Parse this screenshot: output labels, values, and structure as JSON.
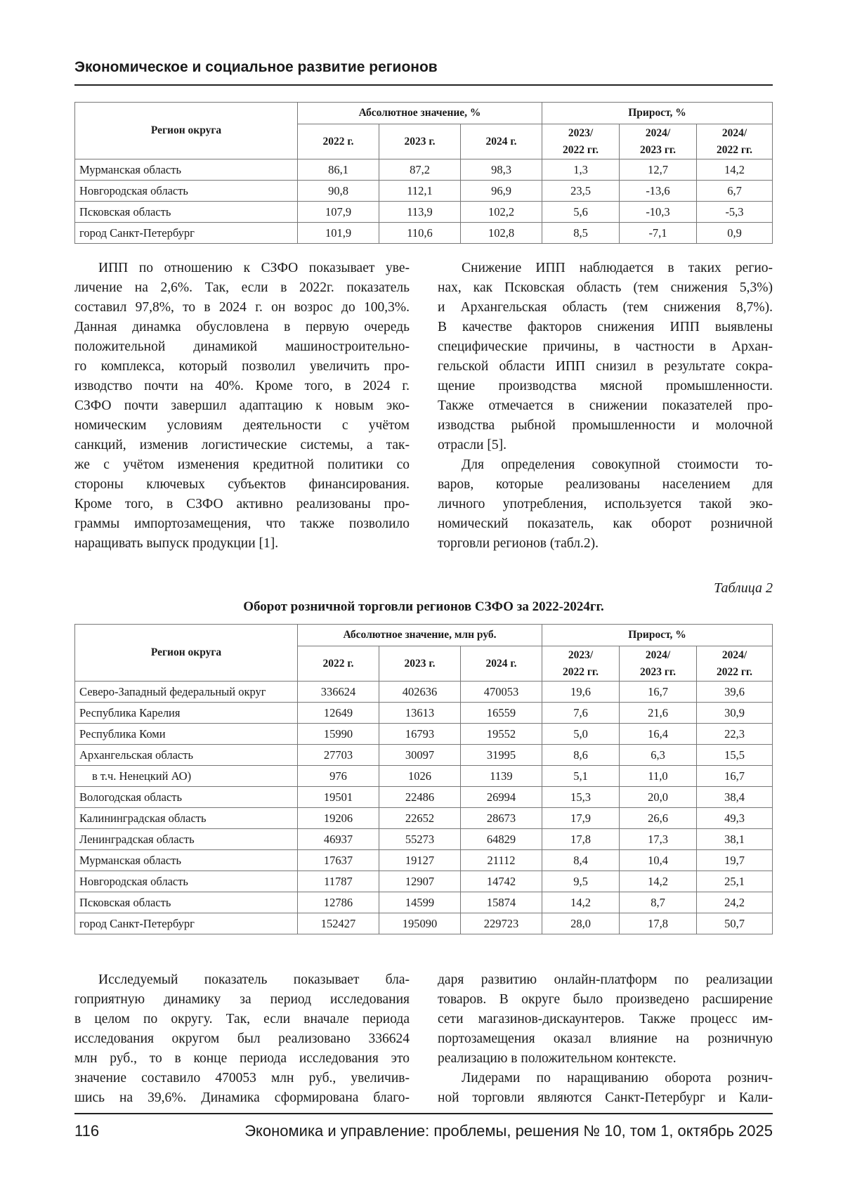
{
  "header": {
    "title": "Экономическое и социальное развитие регионов"
  },
  "table1": {
    "region_header": "Регион округа",
    "group_abs": "Абсолютное значение, %",
    "group_growth": "Прирост, %",
    "columns": [
      "2022 г.",
      "2023 г.",
      "2024 г.",
      "2023/ 2022 гг.",
      "2024/ 2023 гг.",
      "2024/ 2022 гг."
    ],
    "rows": [
      {
        "region": "Мурманская область",
        "values": [
          "86,1",
          "87,2",
          "98,3",
          "1,3",
          "12,7",
          "14,2"
        ]
      },
      {
        "region": "Новгородская область",
        "values": [
          "90,8",
          "112,1",
          "96,9",
          "23,5",
          "-13,6",
          "6,7"
        ]
      },
      {
        "region": "Псковская область",
        "values": [
          "107,9",
          "113,9",
          "102,2",
          "5,6",
          "-10,3",
          "-5,3"
        ]
      },
      {
        "region": "город Санкт-Петербург",
        "values": [
          "101,9",
          "110,6",
          "102,8",
          "8,5",
          "-7,1",
          "0,9"
        ]
      }
    ]
  },
  "text_top": {
    "left": [
      {
        "lines": [
          "ИПП по отношению к СЗФО показывает уве-",
          "личение на 2,6%. Так, если в 2022г. показатель",
          "составил 97,8%, то в 2024 г. он возрос до 100,3%.",
          "Данная динамка обусловлена в первую очередь",
          "положительной динамикой машиностроительно-",
          "го комплекса, который позволил увеличить про-",
          "изводство почти на 40%. Кроме того, в 2024 г.",
          "СЗФО почти завершил адаптацию к новым эко-",
          "номическим условиям деятельности с учётом",
          "санкций, изменив логистические системы, а так-",
          "же с учётом изменения кредитной политики со",
          "стороны ключевых субъектов финансирования.",
          "Кроме того, в СЗФО активно реализованы про-",
          "граммы импортозамещения, что также позволило",
          "наращивать выпуск продукции [1]."
        ]
      }
    ],
    "right": [
      {
        "lines": [
          "Снижение ИПП наблюдается в таких регио-",
          "нах, как Псковская область (тем снижения 5,3%)",
          "и Архангельская область (тем снижения 8,7%).",
          "В качестве факторов снижения ИПП выявлены",
          "специфические причины, в частности в Архан-",
          "гельской области ИПП снизил в результате сокра-",
          "щение производства мясной промышленности.",
          "Также отмечается в снижении показателей про-",
          "изводства рыбной промышленности и молочной",
          "отрасли [5]."
        ]
      },
      {
        "lines": [
          "Для определения совокупной стоимости то-",
          "варов, которые реализованы населением для",
          "личного употребления, используется такой эко-",
          "номический показатель, как оборот розничной",
          "торговли регионов (табл.2)."
        ]
      }
    ]
  },
  "table2": {
    "caption": "Таблица 2",
    "title": "Оборот розничной торговли регионов СЗФО за 2022-2024гг.",
    "region_header": "Регион округа",
    "group_abs": "Абсолютное значение, млн руб.",
    "group_growth": "Прирост, %",
    "columns": [
      "2022 г.",
      "2023 г.",
      "2024 г.",
      "2023/ 2022 гг.",
      "2024/ 2023 гг.",
      "2024/ 2022 гг."
    ],
    "rows": [
      {
        "region": "Северо-Западный федеральный округ",
        "values": [
          "336624",
          "402636",
          "470053",
          "19,6",
          "16,7",
          "39,6"
        ]
      },
      {
        "region": "Республика Карелия",
        "values": [
          "12649",
          "13613",
          "16559",
          "7,6",
          "21,6",
          "30,9"
        ]
      },
      {
        "region": "Республика Коми",
        "values": [
          "15990",
          "16793",
          "19552",
          "5,0",
          "16,4",
          "22,3"
        ]
      },
      {
        "region": "Архангельская область",
        "values": [
          "27703",
          "30097",
          "31995",
          "8,6",
          "6,3",
          "15,5"
        ]
      },
      {
        "region": "в т.ч. Ненецкий АО)",
        "sub": true,
        "values": [
          "976",
          "1026",
          "1139",
          "5,1",
          "11,0",
          "16,7"
        ]
      },
      {
        "region": "Вологодская область",
        "values": [
          "19501",
          "22486",
          "26994",
          "15,3",
          "20,0",
          "38,4"
        ]
      },
      {
        "region": "Калининградская область",
        "values": [
          "19206",
          "22652",
          "28673",
          "17,9",
          "26,6",
          "49,3"
        ]
      },
      {
        "region": "Ленинградская область",
        "values": [
          "46937",
          "55273",
          "64829",
          "17,8",
          "17,3",
          "38,1"
        ]
      },
      {
        "region": "Мурманская область",
        "values": [
          "17637",
          "19127",
          "21112",
          "8,4",
          "10,4",
          "19,7"
        ]
      },
      {
        "region": "Новгородская область",
        "values": [
          "11787",
          "12907",
          "14742",
          "9,5",
          "14,2",
          "25,1"
        ]
      },
      {
        "region": "Псковская область",
        "values": [
          "12786",
          "14599",
          "15874",
          "14,2",
          "8,7",
          "24,2"
        ]
      },
      {
        "region": "город Санкт-Петербург",
        "values": [
          "152427",
          "195090",
          "229723",
          "28,0",
          "17,8",
          "50,7"
        ]
      }
    ]
  },
  "text_bottom": {
    "left": [
      {
        "continues": true,
        "lines": [
          "Исследуемый показатель показывает бла-",
          "гоприятную динамику за период исследования",
          "в целом по округу. Так, если вначале периода",
          "исследования округом был реализовано 336624",
          "млн руб., то в конце периода исследования это",
          "значение составило 470053 млн руб., увеличив-",
          "шись на 39,6%. Динамика сформирована благо-"
        ]
      }
    ],
    "right": [
      {
        "noindent": true,
        "lines": [
          "даря развитию онлайн-платформ по реализации",
          "товаров. В округе было произведено расширение",
          "сети магазинов-дискаунтеров. Также процесс им-",
          "портозамещения оказал влияние на розничную",
          "реализацию в положительном контексте."
        ]
      },
      {
        "continues": true,
        "lines": [
          "Лидерами по наращиванию оборота рознич-",
          "ной торговли являются Санкт-Петербург и Кали-"
        ]
      }
    ]
  },
  "footer": {
    "page": "116",
    "journal": "Экономика и управление: проблемы, решения № 10, том 1, октябрь 2025"
  }
}
